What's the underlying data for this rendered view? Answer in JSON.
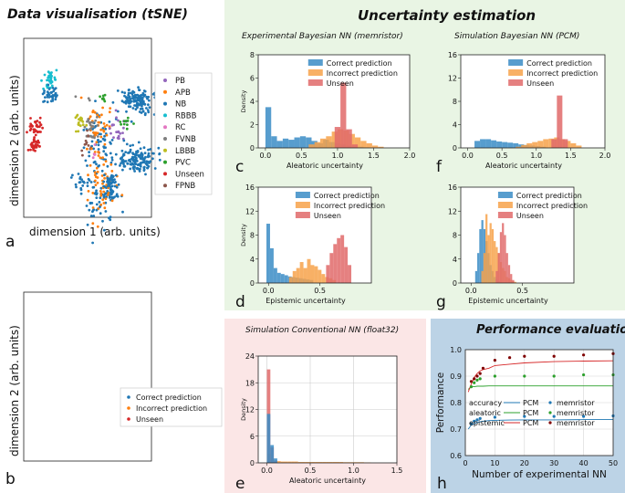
{
  "colors": {
    "correct": "#1f77b4",
    "incorrect": "#ff7f0e",
    "unseen": "#d62728",
    "blue_bar": "#3a8cc6",
    "orange_bar": "#f7a24a",
    "red_bar": "#e06a6a",
    "panel_green": "#e9f5e4",
    "panel_red": "#fbe6e6",
    "panel_blue": "#bcd3e6",
    "PB": "#9467bd",
    "APB": "#ff7f0e",
    "NB": "#1f77b4",
    "RBBB": "#17becf",
    "RC": "#e377c2",
    "FVNB": "#7f7f7f",
    "LBBB": "#bcbd22",
    "PVC": "#2ca02c",
    "Unseen": "#d62728",
    "FPNB": "#8c564b"
  },
  "titles": {
    "tsne": "Data visualisation (tSNE)",
    "uncertainty": "Uncertainty estimation",
    "performance": "Performance evaluation",
    "exp_bnn": "Experimental Bayesian NN (memristor)",
    "sim_bnn": "Simulation Bayesian NN (PCM)",
    "sim_conv": "Simulation Conventional NN (float32)"
  },
  "panel_letters": {
    "a": "a",
    "b": "b",
    "c": "c",
    "d": "d",
    "e": "e",
    "f": "f",
    "g": "g",
    "h": "h"
  },
  "tsne": {
    "xlabel": "dimension 1 (arb. units)",
    "ylabel": "dimension 2 (arb. units)",
    "legend_a": [
      "PB",
      "APB",
      "NB",
      "RBBB",
      "RC",
      "FVNB",
      "LBBB",
      "PVC",
      "Unseen",
      "FPNB"
    ],
    "legend_b": [
      "Correct prediction",
      "Incorrect prediction",
      "Unseen"
    ]
  },
  "chart_data": [
    {
      "id": "c",
      "type": "bar",
      "title": "Experimental Bayesian NN (memristor)",
      "xlabel": "Aleatoric uncertainty",
      "ylabel": "Density",
      "xlim": [
        -0.1,
        2.0
      ],
      "ylim": [
        0,
        8
      ],
      "xticks": [
        "0.0",
        "0.5",
        "1.0",
        "1.5",
        "2.0"
      ],
      "yticks": [
        "0",
        "2",
        "4",
        "6",
        "8"
      ],
      "legend": [
        "Correct prediction",
        "Incorrect prediction",
        "Unseen"
      ],
      "bin_width": 0.08,
      "series": [
        {
          "name": "Correct prediction",
          "start": 0.0,
          "values": [
            3.5,
            1.0,
            0.6,
            0.8,
            0.7,
            0.9,
            1.0,
            0.9,
            0.6,
            0.4,
            0.7,
            0.5,
            0.4,
            0.3,
            0.2,
            0.1,
            0.1,
            0.05
          ]
        },
        {
          "name": "Incorrect prediction",
          "start": 0.6,
          "values": [
            0.3,
            0.5,
            0.8,
            1.0,
            1.4,
            1.6,
            1.5,
            1.2,
            0.9,
            0.6,
            0.4,
            0.2,
            0.1
          ]
        },
        {
          "name": "Unseen",
          "start": 0.96,
          "values": [
            1.8,
            5.6,
            1.6,
            0.3
          ]
        }
      ]
    },
    {
      "id": "f",
      "type": "bar",
      "title": "Simulation Bayesian NN (PCM)",
      "xlabel": "Aleatoric uncertainty",
      "ylabel": "",
      "xlim": [
        -0.1,
        2.0
      ],
      "ylim": [
        0,
        16
      ],
      "xticks": [
        "0.0",
        "0.5",
        "1.0",
        "1.5",
        "2.0"
      ],
      "yticks": [
        "0",
        "4",
        "8",
        "12",
        "16"
      ],
      "legend": [
        "Correct prediction",
        "Incorrect prediction",
        "Unseen"
      ],
      "bin_width": 0.08,
      "series": [
        {
          "name": "Correct prediction",
          "start": 0.1,
          "values": [
            1.2,
            1.5,
            1.5,
            1.3,
            1.1,
            1.0,
            0.9,
            0.8,
            0.6,
            0.5,
            0.4,
            0.3,
            0.2
          ]
        },
        {
          "name": "Incorrect prediction",
          "start": 0.7,
          "values": [
            0.2,
            0.5,
            0.8,
            1.0,
            1.2,
            1.5,
            1.6,
            1.8,
            1.5,
            1.2,
            0.8,
            0.4
          ]
        },
        {
          "name": "Unseen",
          "start": 1.22,
          "values": [
            1.5,
            9.0,
            1.5
          ]
        }
      ]
    },
    {
      "id": "d",
      "type": "bar",
      "title": "",
      "xlabel": "Epistemic uncertainty",
      "ylabel": "Density",
      "xlim": [
        -0.1,
        1.0
      ],
      "ylim": [
        0,
        16
      ],
      "xticks": [
        "0.0",
        "0.5"
      ],
      "yticks": [
        "0",
        "4",
        "8",
        "12",
        "16"
      ],
      "legend": [
        "Correct prediction",
        "Incorrect prediction",
        "Unseen"
      ],
      "bin_width": 0.035,
      "series": [
        {
          "name": "Correct prediction",
          "start": -0.02,
          "values": [
            9.9,
            5.8,
            2.5,
            1.7,
            1.5,
            1.3,
            1.1,
            1.0,
            0.9,
            0.8,
            0.7,
            0.6,
            0.5
          ]
        },
        {
          "name": "Incorrect prediction",
          "start": 0.2,
          "values": [
            1.0,
            2.0,
            2.5,
            3.5,
            2.5,
            4.0,
            3.0,
            2.8,
            2.2,
            1.5,
            1.0,
            0.8,
            0.5
          ]
        },
        {
          "name": "Unseen",
          "start": 0.56,
          "values": [
            3.0,
            5.0,
            6.5,
            7.5,
            8.0,
            6.0,
            3.0
          ]
        }
      ]
    },
    {
      "id": "g",
      "type": "bar",
      "title": "",
      "xlabel": "Epistemic uncertainty",
      "ylabel": "",
      "xlim": [
        -0.1,
        1.0
      ],
      "ylim": [
        0,
        16
      ],
      "xticks": [
        "0.0",
        "0.5"
      ],
      "yticks": [
        "0",
        "4",
        "8",
        "12",
        "16"
      ],
      "legend": [
        "Correct prediction",
        "Incorrect prediction",
        "Unseen"
      ],
      "bin_width": 0.02,
      "series": [
        {
          "name": "Correct prediction",
          "start": 0.04,
          "values": [
            2.0,
            5.0,
            9.0,
            10.5,
            9.0,
            7.0,
            5.0,
            3.0,
            2.0,
            1.0,
            0.6,
            0.3
          ]
        },
        {
          "name": "Incorrect prediction",
          "start": 0.1,
          "values": [
            2.0,
            5.0,
            11.5,
            8.0,
            10.0,
            9.0,
            7.0,
            6.0,
            5.0,
            3.5,
            2.5,
            2.0,
            1.0,
            0.8,
            0.5,
            0.3,
            0.2
          ]
        },
        {
          "name": "Unseen",
          "start": 0.24,
          "values": [
            2.0,
            5.0,
            8.5,
            10.0,
            8.0,
            5.0,
            3.0,
            1.5,
            0.5
          ]
        }
      ]
    },
    {
      "id": "e",
      "type": "bar",
      "title": "Simulation Conventional NN (float32)",
      "xlabel": "Aleatoric uncertainty",
      "ylabel": "Density",
      "xlim": [
        -0.1,
        1.5
      ],
      "ylim": [
        0,
        24
      ],
      "xticks": [
        "0.0",
        "0.5",
        "1.0",
        "1.5"
      ],
      "yticks": [
        "0",
        "6",
        "12",
        "18",
        "24"
      ],
      "bin_width": 0.04,
      "series": [
        {
          "name": "Correct prediction",
          "start": 0.0,
          "values": [
            11,
            4,
            1.0
          ]
        },
        {
          "name": "Incorrect prediction",
          "start": 0.0,
          "values": [
            2,
            1.0,
            0.5,
            0.4,
            0.3,
            0.3,
            0.3,
            0.3,
            0.3,
            0.2,
            0.2,
            0.2,
            0.2,
            0.2,
            0.2,
            0.2,
            0.2,
            0.2,
            0.2,
            0.2,
            0.2,
            0.2,
            0.15,
            0.15,
            0.15,
            0.15,
            0.15,
            0.15,
            0.1,
            0.1
          ]
        },
        {
          "name": "Unseen",
          "start": 0.0,
          "values": [
            21,
            3.5,
            0.5
          ]
        }
      ]
    },
    {
      "id": "h",
      "type": "line",
      "title": "Performance evaluation",
      "xlabel": "Number of experimental NN",
      "ylabel": "Performance",
      "xlim": [
        0,
        50
      ],
      "ylim": [
        0.6,
        1.0
      ],
      "xticks": [
        "0",
        "10",
        "20",
        "30",
        "40",
        "50"
      ],
      "yticks": [
        "0.6",
        "0.7",
        "0.8",
        "0.9",
        "1.0"
      ],
      "legend_rows": [
        {
          "metric": "accuracy",
          "line": "PCM",
          "marker": "memristor"
        },
        {
          "metric": "aleatoric",
          "line": "PCM",
          "marker": "memristor"
        },
        {
          "metric": "epistemic",
          "line": "PCM",
          "marker": "memristor"
        }
      ],
      "pcm_lines": [
        {
          "name": "accuracy",
          "color": "#1f77b4",
          "x": [
            1,
            2,
            3,
            4,
            5,
            6,
            8,
            10,
            15,
            20,
            30,
            40,
            50
          ],
          "y": [
            0.7,
            0.715,
            0.72,
            0.725,
            0.728,
            0.73,
            0.732,
            0.733,
            0.734,
            0.735,
            0.735,
            0.736,
            0.736
          ]
        },
        {
          "name": "aleatoric",
          "color": "#2ca02c",
          "x": [
            1,
            2,
            3,
            4,
            5,
            6,
            8,
            10,
            15,
            20,
            30,
            40,
            50
          ],
          "y": [
            0.85,
            0.86,
            0.86,
            0.862,
            0.862,
            0.862,
            0.863,
            0.863,
            0.863,
            0.863,
            0.863,
            0.863,
            0.863
          ]
        },
        {
          "name": "epistemic",
          "color": "#d62728",
          "x": [
            1,
            2,
            3,
            4,
            5,
            6,
            8,
            10,
            15,
            20,
            30,
            40,
            50
          ],
          "y": [
            0.84,
            0.87,
            0.895,
            0.91,
            0.92,
            0.925,
            0.93,
            0.94,
            0.945,
            0.95,
            0.955,
            0.957,
            0.958
          ]
        }
      ],
      "memristor_points": [
        {
          "name": "accuracy",
          "color": "#1f77b4",
          "x": [
            2,
            3,
            4,
            5,
            10,
            20,
            30,
            40,
            50
          ],
          "y": [
            0.72,
            0.73,
            0.735,
            0.74,
            0.745,
            0.748,
            0.748,
            0.748,
            0.75
          ]
        },
        {
          "name": "aleatoric",
          "color": "#2ca02c",
          "x": [
            2,
            3,
            4,
            5,
            10,
            20,
            30,
            40,
            50
          ],
          "y": [
            0.86,
            0.875,
            0.885,
            0.89,
            0.9,
            0.9,
            0.9,
            0.905,
            0.905
          ]
        },
        {
          "name": "epistemic",
          "color": "#7f0000",
          "x": [
            2,
            3,
            4,
            5,
            6,
            10,
            15,
            20,
            30,
            40,
            50
          ],
          "y": [
            0.88,
            0.89,
            0.9,
            0.91,
            0.93,
            0.96,
            0.97,
            0.975,
            0.975,
            0.98,
            0.985
          ]
        }
      ]
    }
  ]
}
